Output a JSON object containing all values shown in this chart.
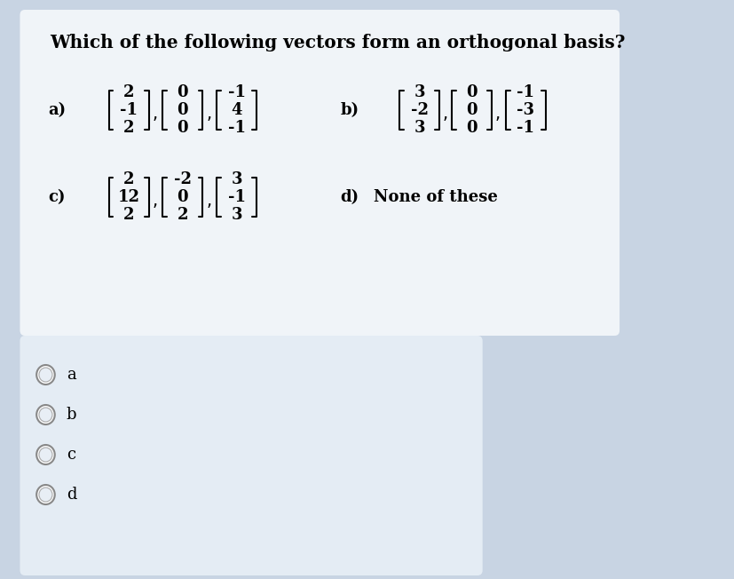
{
  "title": "Which of the following vectors form an orthogonal basis?",
  "bg_outer": "#c8d4e3",
  "bg_upper": "#f0f4f8",
  "bg_lower": "#e4ecf4",
  "vec_a1": [
    "2",
    "-1",
    "2"
  ],
  "vec_a2": [
    "0",
    "0",
    "0"
  ],
  "vec_a3": [
    "-1",
    "4",
    "-1"
  ],
  "vec_b1": [
    "3",
    "-2",
    "3"
  ],
  "vec_b2": [
    "0",
    "0",
    "0"
  ],
  "vec_b3": [
    "-1",
    "-3",
    "-1"
  ],
  "vec_c1": [
    "2",
    "12",
    "2"
  ],
  "vec_c2": [
    "-2",
    "0",
    "2"
  ],
  "vec_c3": [
    "3",
    "-1",
    "3"
  ],
  "option_d_text": "None of these",
  "radio_labels": [
    "a",
    "b",
    "c",
    "d"
  ],
  "label_a": "a)",
  "label_b": "b)",
  "label_c": "c)",
  "label_d": "d)"
}
